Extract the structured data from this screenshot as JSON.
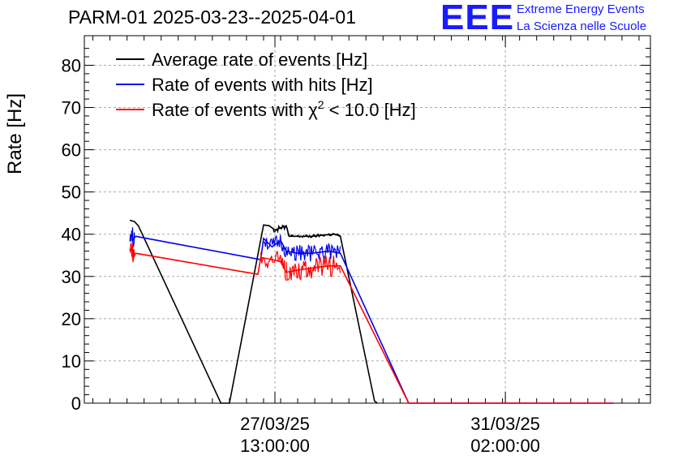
{
  "header": {
    "title": "PARM-01 2025-03-23--2025-04-01",
    "logo_text": "EEE",
    "logo_line1": "Extreme Energy Events",
    "logo_line2": "La Scienza nelle Scuole"
  },
  "chart_data": {
    "type": "line",
    "title": "PARM-01 2025-03-23--2025-04-01",
    "ylabel": "Rate [Hz]",
    "xlabel": "",
    "ylim": [
      0,
      87
    ],
    "yticks": [
      0,
      10,
      20,
      30,
      40,
      50,
      60,
      70,
      80
    ],
    "xlim_days": [
      0,
      9.95
    ],
    "xticks": [
      {
        "pos": 3.35,
        "line1": "27/03/25",
        "line2": "13:00:00"
      },
      {
        "pos": 7.4,
        "line1": "31/03/25",
        "line2": "02:00:00"
      }
    ],
    "grid": true,
    "legend_position": "top-left",
    "series": [
      {
        "name": "Average rate of events [Hz]",
        "legend_main": "Average rate of events [Hz]",
        "color": "#000000",
        "points": [
          [
            0.8,
            43.3
          ],
          [
            0.88,
            43.0
          ],
          [
            0.95,
            42.0
          ],
          [
            2.4,
            0
          ],
          [
            2.55,
            0
          ],
          [
            3.15,
            42.2
          ],
          [
            3.25,
            42.0
          ],
          [
            3.35,
            41.0
          ],
          [
            3.45,
            41.5
          ],
          [
            3.55,
            42.0
          ],
          [
            3.6,
            39.5
          ],
          [
            3.8,
            39.5
          ],
          [
            4.0,
            39.5
          ],
          [
            4.2,
            39.8
          ],
          [
            4.4,
            40.0
          ],
          [
            4.5,
            39.5
          ],
          [
            5.1,
            0.5
          ],
          [
            5.15,
            0
          ]
        ],
        "noise": [
          [
            3.3,
            3.6,
            0.8
          ],
          [
            3.6,
            4.5,
            0.4
          ]
        ]
      },
      {
        "name": "Rate of events with hits [Hz]",
        "legend_main": "Rate of events with hits [Hz]",
        "color": "#0000ee",
        "points": [
          [
            0.85,
            40.0
          ],
          [
            0.85,
            38.5
          ],
          [
            0.9,
            39.5
          ],
          [
            3.1,
            34.0
          ],
          [
            3.15,
            39.0
          ],
          [
            3.3,
            37.0
          ],
          [
            3.45,
            38.5
          ],
          [
            3.55,
            36.0
          ],
          [
            3.75,
            35.5
          ],
          [
            4.0,
            35.5
          ],
          [
            4.3,
            36.0
          ],
          [
            4.5,
            35.5
          ],
          [
            5.7,
            0
          ],
          [
            9.3,
            0
          ]
        ],
        "noise": [
          [
            0.8,
            0.88,
            1.8
          ],
          [
            3.15,
            3.55,
            2.0
          ],
          [
            3.55,
            4.5,
            2.0
          ]
        ]
      },
      {
        "name": "Rate of events with χ2 < 10.0 [Hz]",
        "legend_main": "Rate of events with χ",
        "legend_sup": "2",
        "legend_tail": " < 10.0 [Hz]",
        "color": "#ff0000",
        "points": [
          [
            0.85,
            36.5
          ],
          [
            0.85,
            34.0
          ],
          [
            0.9,
            35.5
          ],
          [
            3.05,
            30.5
          ],
          [
            3.1,
            34.5
          ],
          [
            3.3,
            34.0
          ],
          [
            3.45,
            33.5
          ],
          [
            3.55,
            31.0
          ],
          [
            3.75,
            31.5
          ],
          [
            4.0,
            32.0
          ],
          [
            4.3,
            32.5
          ],
          [
            4.5,
            32.5
          ],
          [
            5.7,
            0
          ],
          [
            9.3,
            0
          ]
        ],
        "noise": [
          [
            0.8,
            0.88,
            2.0
          ],
          [
            3.1,
            3.55,
            2.3
          ],
          [
            3.55,
            4.5,
            2.5
          ]
        ]
      }
    ]
  }
}
